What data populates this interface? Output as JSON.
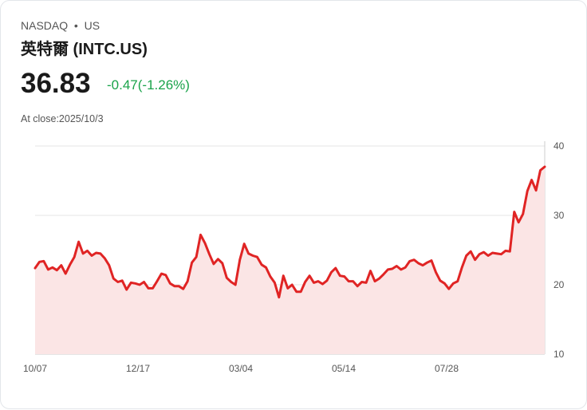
{
  "header": {
    "exchange": "NASDAQ",
    "separator": "•",
    "market": "US",
    "title": "英特爾 (INTC.US)",
    "price": "36.83",
    "change": "-0.47(-1.26%)",
    "at_close": "At close:2025/10/3"
  },
  "colors": {
    "line": "#e02424",
    "fill": "#fbe5e5",
    "change": "#1aa34a",
    "grid": "#e5e5e5"
  },
  "chart_data": {
    "type": "area",
    "ylim": [
      10,
      40
    ],
    "yticks": [
      "40",
      "30",
      "20",
      "10"
    ],
    "ytick_values": [
      40,
      30,
      20,
      10
    ],
    "xticks": [
      "10/07",
      "12/17",
      "03/04",
      "05/14",
      "07/28"
    ],
    "grid": true,
    "values": [
      22.4,
      23.3,
      23.4,
      22.2,
      22.5,
      22.1,
      22.8,
      21.6,
      22.9,
      24,
      26.2,
      24.5,
      24.9,
      24.2,
      24.6,
      24.5,
      23.8,
      22.8,
      20.9,
      20.4,
      20.6,
      19.3,
      20.3,
      20.2,
      20,
      20.4,
      19.5,
      19.5,
      20.5,
      21.6,
      21.4,
      20.2,
      19.8,
      19.8,
      19.4,
      20.5,
      23.2,
      24,
      27.2,
      26,
      24.4,
      23,
      23.7,
      23.1,
      21,
      20.4,
      20,
      23.6,
      25.9,
      24.5,
      24.2,
      24,
      22.9,
      22.5,
      21.2,
      20.3,
      18.2,
      21.3,
      19.5,
      20,
      19,
      19,
      20.4,
      21.3,
      20.3,
      20.5,
      20.1,
      20.6,
      21.8,
      22.4,
      21.3,
      21.2,
      20.5,
      20.5,
      19.8,
      20.4,
      20.3,
      22,
      20.5,
      20.9,
      21.5,
      22.2,
      22.3,
      22.7,
      22.2,
      22.5,
      23.4,
      23.6,
      23.1,
      22.8,
      23.2,
      23.5,
      21.8,
      20.6,
      20.2,
      19.4,
      20.2,
      20.5,
      22.5,
      24.2,
      24.8,
      23.6,
      24.4,
      24.7,
      24.2,
      24.6,
      24.5,
      24.4,
      24.9,
      24.8,
      30.5,
      29,
      30.2,
      33.5,
      35.1,
      33.6,
      36.5,
      37
    ]
  }
}
